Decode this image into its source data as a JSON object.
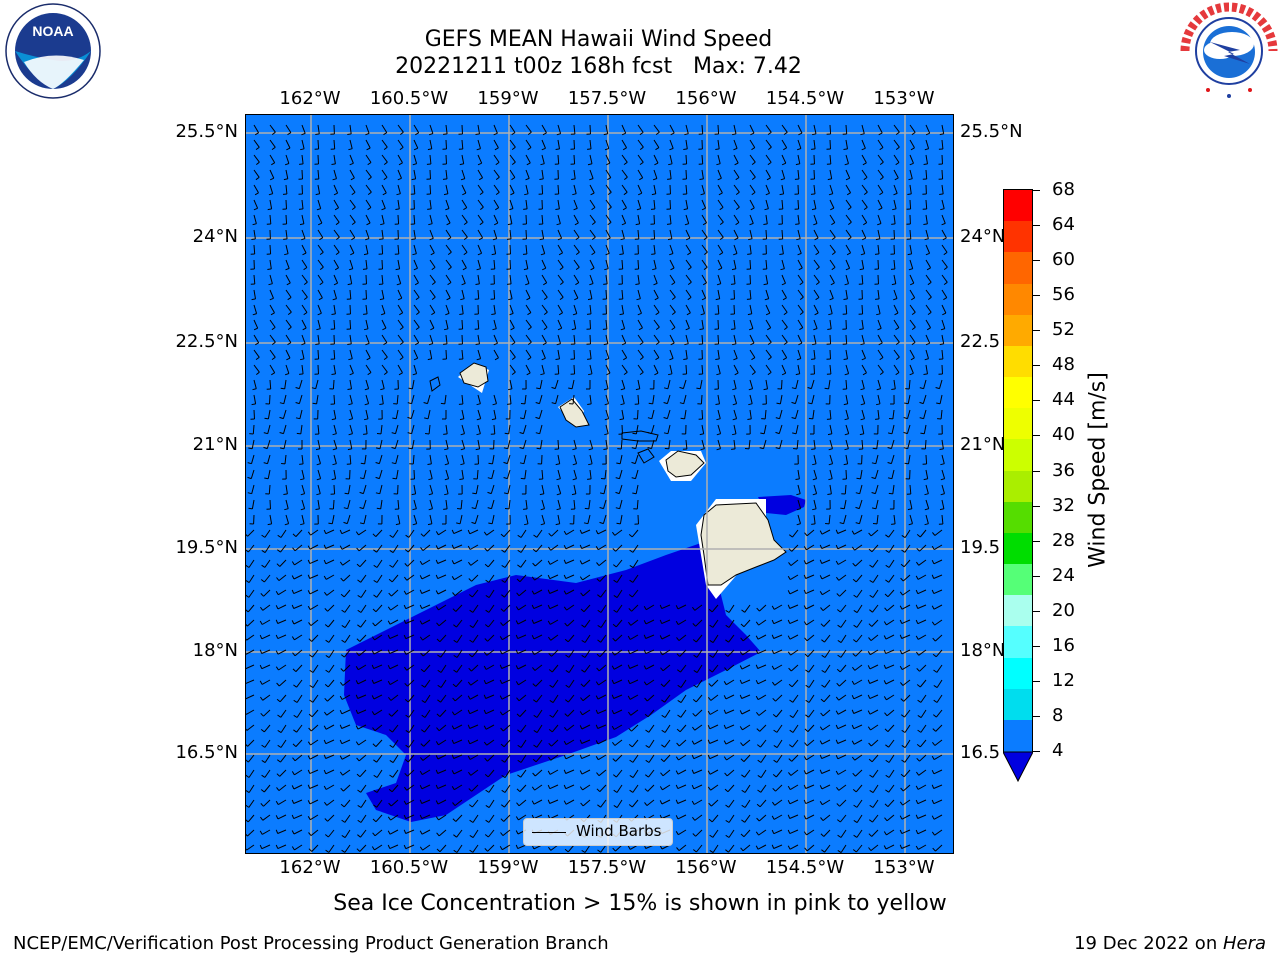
{
  "header": {
    "title_line1": "GEFS MEAN Hawaii Wind Speed",
    "title_line2": "20221211 t00z 168h fcst   Max: 7.42"
  },
  "logos": {
    "left": "NOAA",
    "left_ring_text": "NATIONAL OCEANIC AND ATMOSPHERIC ADMINISTRATION · U.S. DEPARTMENT OF COMMERCE",
    "right_ring_text": "NATIONAL WEATHER SERVICE"
  },
  "map": {
    "lon_ticks": [
      "162°W",
      "160.5°W",
      "159°W",
      "157.5°W",
      "156°W",
      "154.5°W",
      "153°W"
    ],
    "lat_ticks": [
      "25.5°N",
      "24°N",
      "22.5°N",
      "21°N",
      "19.5°N",
      "18°N",
      "16.5°N"
    ],
    "lat_ticks_right": [
      "25.5°N",
      "24°N",
      "22.5",
      "21°N",
      "19.5",
      "18°N",
      "16.5"
    ],
    "legend_label": "Wind Barbs",
    "colors": {
      "ocean_fill": "#0b7cff",
      "low_wind_fill": "#0000e0",
      "land": "#ecead8",
      "grid": "#b0b0b0"
    }
  },
  "colorbar": {
    "label": "Wind Speed [m/s]",
    "ticks": [
      "68",
      "64",
      "60",
      "56",
      "52",
      "48",
      "44",
      "40",
      "36",
      "32",
      "28",
      "24",
      "20",
      "16",
      "12",
      "8",
      "4"
    ],
    "colors_top_to_bottom": [
      "#ff0000",
      "#ff3300",
      "#ff6600",
      "#ff8800",
      "#ffaa00",
      "#ffdd00",
      "#ffff00",
      "#eeff00",
      "#ccff00",
      "#aaee00",
      "#55dd00",
      "#00dd00",
      "#55ff77",
      "#aaffee",
      "#55ffff",
      "#00ffff",
      "#00ddee",
      "#0b7cff"
    ],
    "extend_color": "#0000e0"
  },
  "note": "Sea Ice Concentration > 15% is shown in pink to yellow",
  "footer": {
    "left": "NCEP/EMC/Verification Post Processing Product Generation Branch",
    "right_date": "19 Dec 2022 on ",
    "right_host": "Hera"
  }
}
